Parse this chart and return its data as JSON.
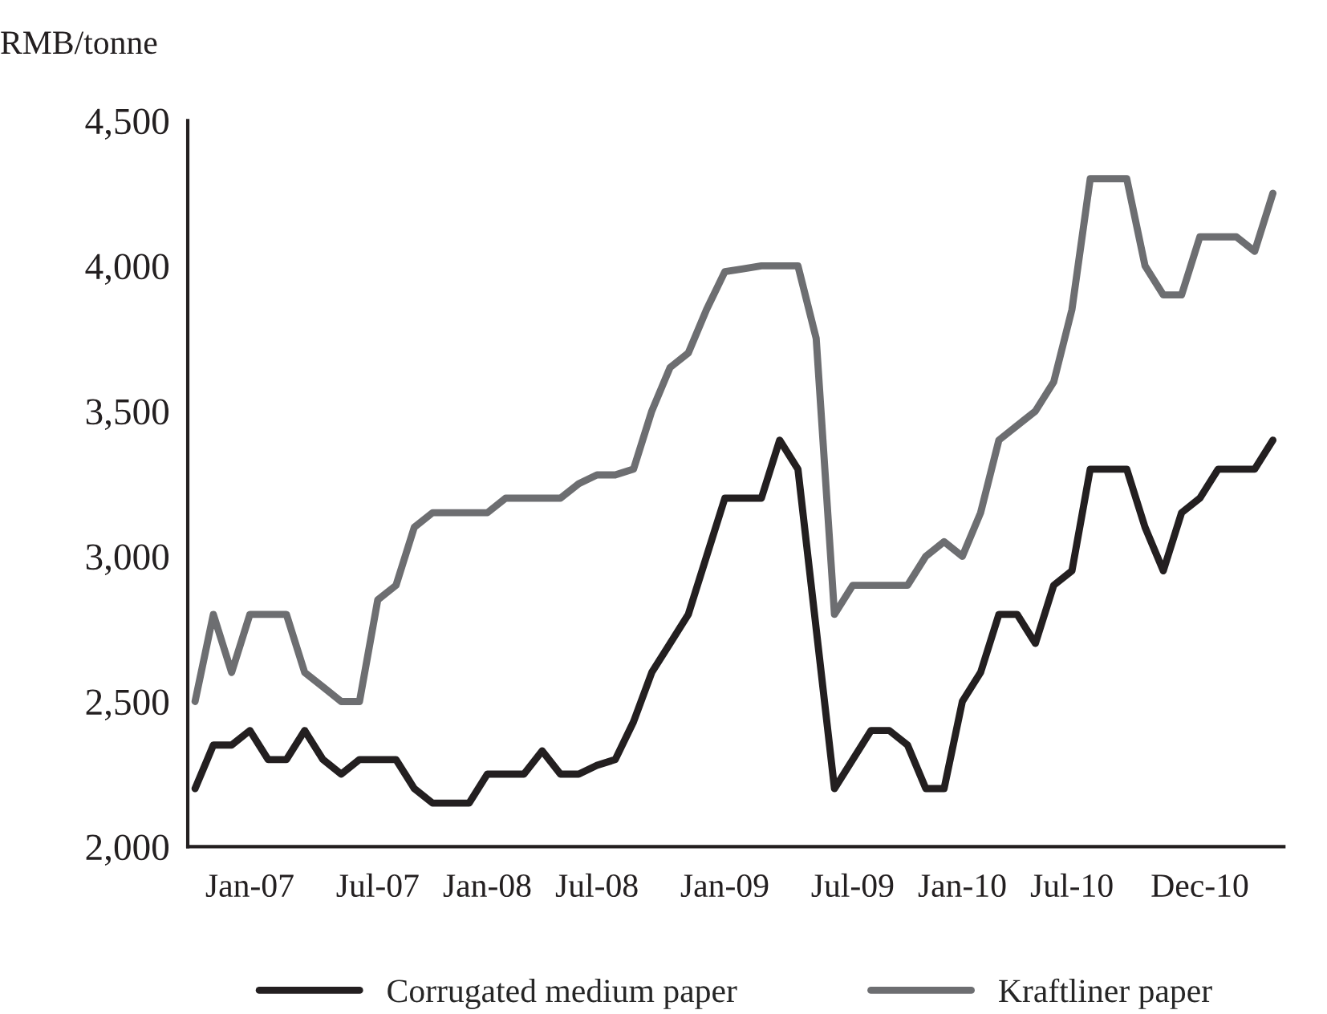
{
  "chart_data": {
    "type": "line",
    "ylabel": "RMB/tonne",
    "categories": [
      null,
      null,
      null,
      "Jan-07",
      null,
      null,
      null,
      null,
      null,
      null,
      "Jul-07",
      null,
      null,
      null,
      null,
      null,
      "Jan-08",
      null,
      null,
      null,
      null,
      null,
      "Jul-08",
      null,
      null,
      null,
      null,
      null,
      null,
      "Jan-09",
      null,
      null,
      null,
      null,
      null,
      null,
      "Jul-09",
      null,
      null,
      null,
      null,
      null,
      "Jan-10",
      null,
      null,
      null,
      null,
      null,
      "Jul-10",
      null,
      null,
      null,
      null,
      null,
      null,
      "Dec-10",
      null,
      null,
      null,
      null
    ],
    "ylim": [
      2000,
      4500
    ],
    "yticks": [
      {
        "value": 2000,
        "label": "2,000"
      },
      {
        "value": 2500,
        "label": "2,500"
      },
      {
        "value": 3000,
        "label": "3,000"
      },
      {
        "value": 3500,
        "label": "3,500"
      },
      {
        "value": 4000,
        "label": "4,000"
      },
      {
        "value": 4500,
        "label": "4,500"
      }
    ],
    "series": [
      {
        "name": "Corrugated medium paper",
        "color": "#231f20",
        "values": [
          2200,
          2350,
          2350,
          2400,
          2300,
          2300,
          2400,
          2300,
          2250,
          2300,
          2300,
          2300,
          2200,
          2150,
          2150,
          2150,
          2250,
          2250,
          2250,
          2330,
          2250,
          2250,
          2280,
          2300,
          2430,
          2600,
          2700,
          2800,
          3000,
          3200,
          3200,
          3200,
          3400,
          3300,
          2750,
          2200,
          2300,
          2400,
          2400,
          2350,
          2200,
          2200,
          2500,
          2600,
          2800,
          2800,
          2700,
          2900,
          2950,
          3300,
          3300,
          3300,
          3100,
          2950,
          3150,
          3200,
          3300,
          3300,
          3300,
          3400
        ]
      },
      {
        "name": "Kraftliner paper",
        "color": "#6d6e71",
        "values": [
          2500,
          2800,
          2600,
          2800,
          2800,
          2800,
          2600,
          2550,
          2500,
          2500,
          2850,
          2900,
          3100,
          3150,
          3150,
          3150,
          3150,
          3200,
          3200,
          3200,
          3200,
          3250,
          3280,
          3280,
          3300,
          3500,
          3650,
          3700,
          3850,
          3980,
          3990,
          4000,
          4000,
          4000,
          3750,
          2800,
          2900,
          2900,
          2900,
          2900,
          3000,
          3050,
          3000,
          3150,
          3400,
          3450,
          3500,
          3600,
          3850,
          4300,
          4300,
          4300,
          4000,
          3900,
          3900,
          4100,
          4100,
          4100,
          4050,
          4250
        ]
      }
    ],
    "legend": "bottom",
    "grid": false,
    "marker": "none",
    "line_style": "solid"
  }
}
